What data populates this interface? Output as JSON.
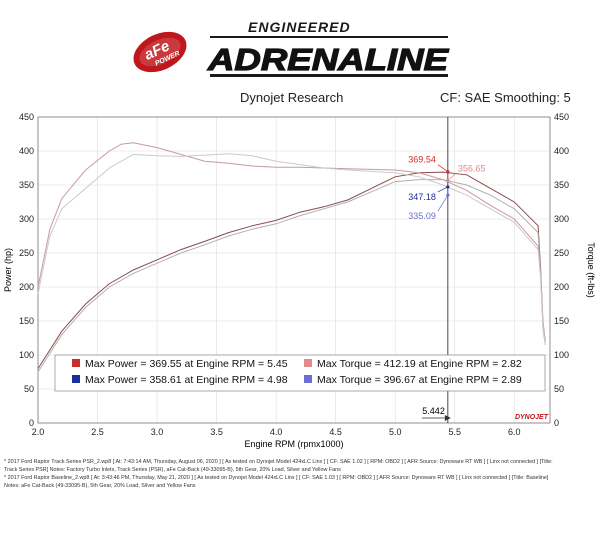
{
  "logo": {
    "badge_line1": "aFe",
    "badge_line2": "POWER",
    "tagline": "ENGINEERED",
    "wordmark": "ADRENALINE"
  },
  "header": {
    "source": "Dynojet Research",
    "settings": "CF: SAE Smoothing: 5"
  },
  "chart_data": {
    "type": "line",
    "xlabel": "Engine RPM (rpmx1000)",
    "ylabel_left": "Power (hp)",
    "ylabel_right": "Torque (ft-lbs)",
    "xlim": [
      2.0,
      6.3
    ],
    "ylim": [
      0,
      450
    ],
    "xticks": [
      "2.0",
      "2.5",
      "3.0",
      "3.5",
      "4.0",
      "4.5",
      "5.0",
      "5.5",
      "6.0"
    ],
    "yticks": [
      "0",
      "50",
      "100",
      "150",
      "200",
      "250",
      "300",
      "350",
      "400",
      "450"
    ],
    "grid": true,
    "brand": "DYNOJET",
    "cursor": {
      "rpm": 5.442,
      "label": "5.442"
    },
    "cursor_values": [
      {
        "label": "369.54",
        "value": 369.54,
        "color": "#cc2b2b"
      },
      {
        "label": "356.65",
        "value": 356.65,
        "color": "#e08a8a"
      },
      {
        "label": "347.18",
        "value": 347.18,
        "color": "#1c2fa0"
      },
      {
        "label": "335.09",
        "value": 335.09,
        "color": "#6a6fd0"
      }
    ],
    "series": [
      {
        "color": "#8a4a4a",
        "x": [
          2.0,
          2.2,
          2.4,
          2.6,
          2.8,
          3.0,
          3.2,
          3.4,
          3.6,
          3.8,
          4.0,
          4.2,
          4.4,
          4.6,
          4.8,
          5.0,
          5.2,
          5.4,
          5.6,
          5.8,
          6.0,
          6.2,
          6.22,
          6.24,
          6.26
        ],
        "values": [
          80,
          135,
          175,
          205,
          225,
          240,
          255,
          267,
          280,
          290,
          298,
          310,
          318,
          328,
          345,
          362,
          368,
          369,
          365,
          345,
          325,
          290,
          230,
          150,
          120
        ]
      },
      {
        "color": "#b0b0b0",
        "x": [
          2.0,
          2.2,
          2.4,
          2.6,
          2.8,
          3.0,
          3.2,
          3.4,
          3.6,
          3.8,
          4.0,
          4.2,
          4.4,
          4.6,
          4.8,
          5.0,
          5.2,
          5.4,
          5.6,
          5.8,
          6.0,
          6.2,
          6.22,
          6.24,
          6.26
        ],
        "values": [
          75,
          130,
          170,
          200,
          220,
          235,
          250,
          262,
          275,
          285,
          293,
          305,
          315,
          325,
          340,
          355,
          358,
          358,
          350,
          335,
          315,
          280,
          220,
          140,
          115
        ]
      },
      {
        "color": "#c99a9a",
        "x": [
          2.0,
          2.1,
          2.2,
          2.4,
          2.6,
          2.7,
          2.8,
          3.0,
          3.2,
          3.4,
          3.6,
          3.8,
          4.0,
          4.2,
          4.4,
          4.6,
          4.8,
          5.0,
          5.2,
          5.4,
          5.6,
          5.8,
          6.0,
          6.2,
          6.22,
          6.24,
          6.26
        ],
        "values": [
          200,
          285,
          330,
          372,
          400,
          410,
          412,
          405,
          395,
          385,
          382,
          378,
          376,
          376,
          375,
          374,
          373,
          372,
          368,
          358,
          342,
          320,
          300,
          260,
          220,
          150,
          120
        ]
      },
      {
        "color": "#cacaca",
        "x": [
          2.0,
          2.1,
          2.2,
          2.4,
          2.6,
          2.8,
          3.0,
          3.2,
          3.4,
          3.6,
          3.8,
          4.0,
          4.2,
          4.4,
          4.6,
          4.8,
          5.0,
          5.2,
          5.4,
          5.6,
          5.8,
          6.0,
          6.2,
          6.22,
          6.24,
          6.26
        ],
        "values": [
          190,
          275,
          315,
          345,
          375,
          395,
          393,
          392,
          394,
          396,
          393,
          385,
          380,
          375,
          372,
          370,
          368,
          362,
          350,
          335,
          315,
          295,
          255,
          215,
          145,
          115
        ]
      }
    ],
    "legend": {
      "placement": "bottom-center",
      "entries": [
        {
          "text": "Max Power = 369.55 at Engine RPM = 5.45",
          "color": "#cc2b2b"
        },
        {
          "text": "Max Torque = 412.19 at Engine RPM = 2.82",
          "color": "#e08a8a"
        },
        {
          "text": "Max Power = 358.61 at Engine RPM = 4.98",
          "color": "#1c2fa0"
        },
        {
          "text": "Max Torque = 396.67 at Engine RPM = 2.89",
          "color": "#6a6fd0"
        }
      ]
    }
  },
  "notes": [
    "*          2017 Ford Raptor Track Series PSR_2.wp8 [ At: 7:43:14 AM, Thursday, August 06, 2020 ] [ As tested on Dynojet Model 424xLC Linx ] [ CF: SAE 1.02 ] [ RPM: OBD2 ] [ AFR Source: Dynoware RT WB ] [ Linx not connected ] [Title:",
    "Track Series PSR] Notes: Factory Turbo Inlets, Track Series (PSR), aFe Cat-Back (49-33095-B), 5th Gear, 20% Load, Silver and Yellow Fans",
    "*          2017 Ford Raptor Baseline_2.wp8 [ At: 3:43:46 PM, Thursday, May 21, 2020 ] [ As tested on Dynojet Model 424xLC Linx ] [ CF: SAE 1.03 ] [ RPM: OBD2 ] [ AFR Source: Dynoware RT WB ] [ Linx not connected ] [Title: Baseline]",
    "Notes: aFe Cat-Back (49-33095-B), 5th Gear, 20% Load, Silver and Yellow Fans"
  ]
}
